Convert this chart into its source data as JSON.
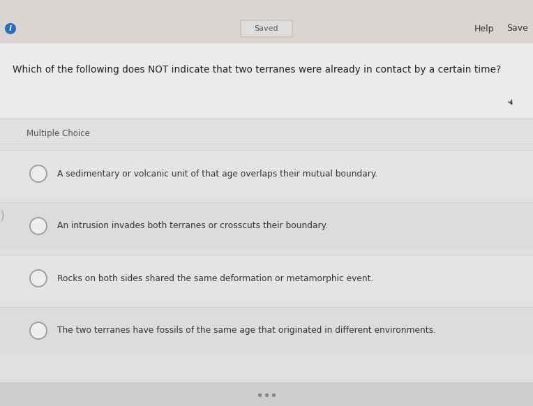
{
  "header_text": "Saved",
  "header_help": "Help",
  "header_save": "Save",
  "question": "Which of the following does NOT indicate that two terranes were already in contact by a certain time?",
  "label": "Multiple Choice",
  "options": [
    "A sedimentary or volcanic unit of that age overlaps their mutual boundary.",
    "An intrusion invades both terranes or crosscuts their boundary.",
    "Rocks on both sides shared the same deformation or metamorphic event.",
    "The two terranes have fossils of the same age that originated in different environments."
  ],
  "fig_bg": "#d0cecc",
  "top_bar_bg": "#d8d5d2",
  "content_bg": "#e8e6e4",
  "question_bg": "#eceae8",
  "card_bg": "#e2e0de",
  "option_bg_even": "#e6e4e2",
  "option_bg_odd": "#dedcda",
  "separator_color": "#c8c6c4",
  "text_color": "#222222",
  "label_color": "#555555",
  "option_text_color": "#333333",
  "circle_edge_color": "#999999",
  "info_icon_color": "#2a6ebb",
  "saved_btn_bg": "#e0dedc",
  "saved_btn_border": "#b8b6b4",
  "help_save_color": "#333333",
  "dots_color": "#888888"
}
